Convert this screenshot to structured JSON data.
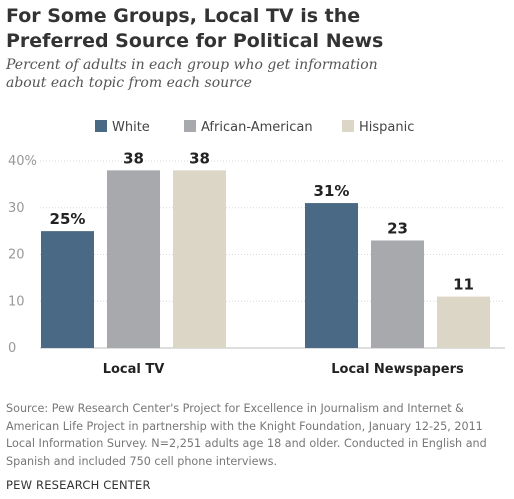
{
  "header": {
    "title_line1": "For Some Groups, Local TV is the",
    "title_line2": "Preferred Source for Political News",
    "subtitle_line1": "Percent of adults in each group who get information",
    "subtitle_line2": "about each topic from each source"
  },
  "source": {
    "line1": "Source: Pew Research Center's Project for Excellence in Journalism and Internet &",
    "line2": "American Life Project in partnership with the Knight Foundation, January 12-25, 2011",
    "line3": "Local Information Survey. N=2,251 adults age 18 and older. Conducted in English and",
    "line4": "Spanish and included 750 cell phone interviews."
  },
  "footer": {
    "org": "PEW RESEARCH CENTER"
  },
  "chart_data": {
    "type": "bar",
    "title": "For Some Groups, Local TV is the Preferred Source for Political News",
    "categories": [
      "Local TV",
      "Local Newspapers"
    ],
    "series": [
      {
        "name": "White",
        "color": "#4a6984",
        "values": [
          25,
          31
        ],
        "labels": [
          "25%",
          "31%"
        ]
      },
      {
        "name": "African-American",
        "color": "#a7a9ac",
        "values": [
          38,
          23
        ],
        "labels": [
          "38",
          "23"
        ]
      },
      {
        "name": "Hispanic",
        "color": "#dcd6c6",
        "values": [
          38,
          11
        ],
        "labels": [
          "38",
          "11"
        ]
      }
    ],
    "yticks": [
      "0",
      "10",
      "20",
      "30",
      "40%"
    ],
    "ylim": [
      0,
      40
    ],
    "grid": true,
    "legend_position": "top"
  }
}
